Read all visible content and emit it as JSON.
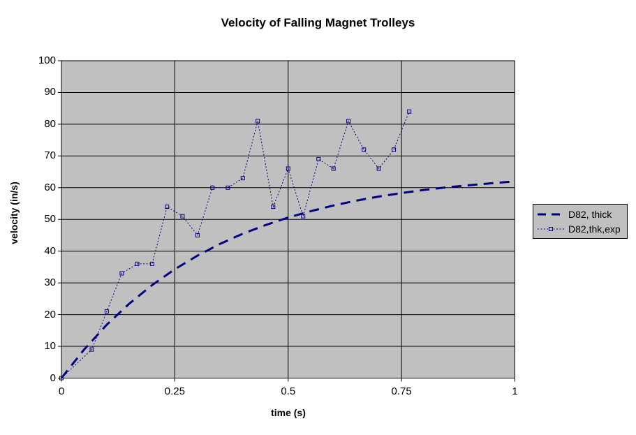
{
  "chart_data": {
    "type": "line",
    "title": "Velocity of Falling Magnet Trolleys",
    "xlabel": "time (s)",
    "ylabel": "velocity (in/s)",
    "xlim": [
      0,
      1
    ],
    "ylim": [
      0,
      100
    ],
    "x_tick_values": [
      0,
      0.25,
      0.5,
      0.75,
      1
    ],
    "x_tick_labels": [
      "0",
      "0.25",
      "0.5",
      "0.75",
      "1"
    ],
    "y_tick_values": [
      0,
      10,
      20,
      30,
      40,
      50,
      60,
      70,
      80,
      90,
      100
    ],
    "grid": true,
    "legend_position": "right",
    "colors": {
      "plot_background": "#c0c0c0",
      "gridline": "#000000",
      "axis": "#000000",
      "series": "#000080",
      "page_background": "#ffffff",
      "text": "#000000"
    },
    "series": [
      {
        "name": "D82, thick",
        "style": "dashed-thick",
        "marker": "none",
        "x": [
          0,
          0.05,
          0.1,
          0.15,
          0.2,
          0.25,
          0.3,
          0.35,
          0.4,
          0.45,
          0.5,
          0.55,
          0.6,
          0.65,
          0.7,
          0.75,
          0.8,
          0.85,
          0.9,
          0.95,
          1.0
        ],
        "y": [
          0,
          9.0,
          16.8,
          23.5,
          29.3,
          34.3,
          38.6,
          42.3,
          45.5,
          48.2,
          50.6,
          52.6,
          54.4,
          55.9,
          57.2,
          58.3,
          59.3,
          60.1,
          60.8,
          61.4,
          62.0
        ]
      },
      {
        "name": "D82,thk,exp",
        "style": "dotted",
        "marker": "open-square",
        "x": [
          0,
          0.067,
          0.1,
          0.133,
          0.167,
          0.2,
          0.233,
          0.267,
          0.3,
          0.333,
          0.367,
          0.4,
          0.433,
          0.467,
          0.5,
          0.533,
          0.567,
          0.6,
          0.633,
          0.667,
          0.7,
          0.733,
          0.767
        ],
        "y": [
          0,
          9,
          21,
          33,
          36,
          36,
          54,
          51,
          45,
          60,
          60,
          63,
          81,
          54,
          66,
          51,
          69,
          66,
          81,
          72,
          66,
          72,
          84
        ]
      }
    ]
  }
}
